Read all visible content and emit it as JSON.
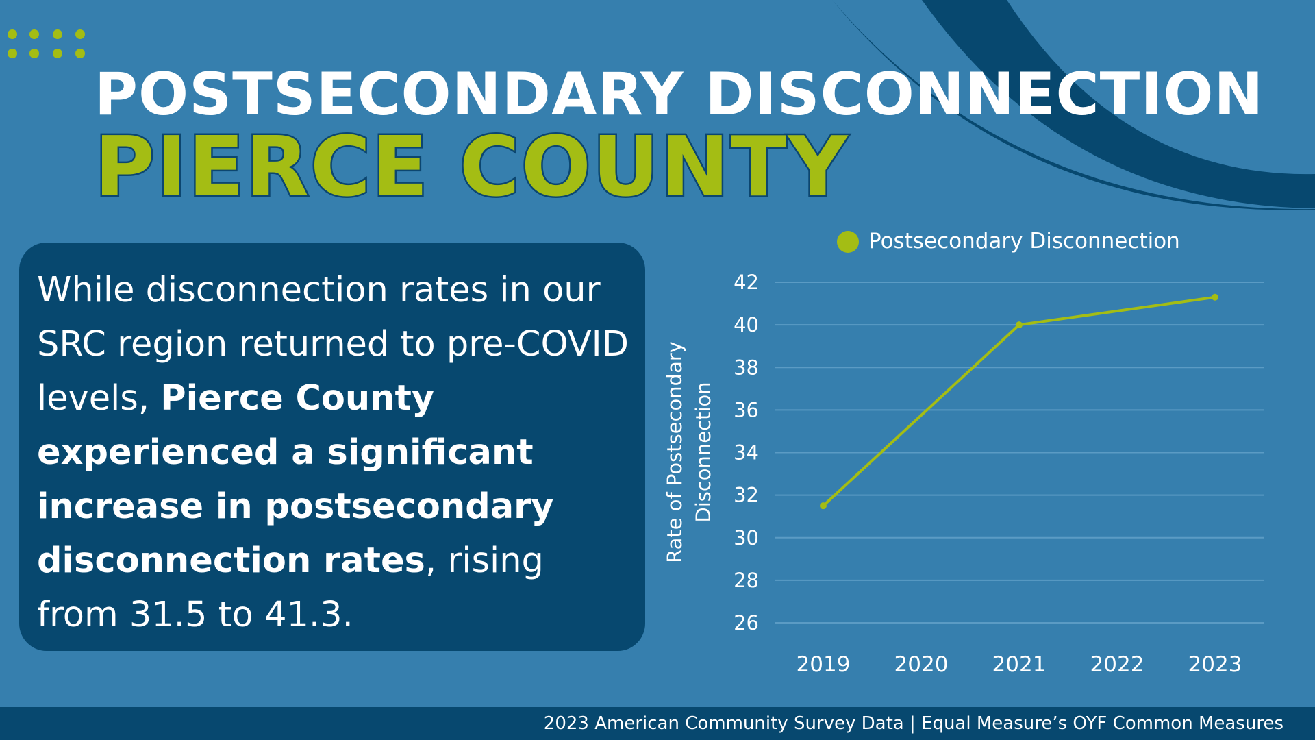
{
  "header": {
    "title": "POSTSECONDARY DISCONNECTION",
    "subtitle": "PIERCE COUNTY"
  },
  "callout": {
    "text_1": "While disconnection rates in our SRC region returned to pre-COVID levels, ",
    "text_bold_1": "Pierce County experienced a significant increase in postsecondary disconnection rates",
    "text_2": ", rising from 31.5 to 41.3."
  },
  "colors": {
    "background": "#367fae",
    "panel": "#07486f",
    "accent": "#a4bd14",
    "gridline": "#5b9bc4"
  },
  "chart_data": {
    "type": "line",
    "categories": [
      "2019",
      "2020",
      "2021",
      "2022",
      "2023"
    ],
    "series": [
      {
        "name": "Postsecondary Disconnection",
        "x": [
          "2019",
          "2021",
          "2023"
        ],
        "values": [
          31.5,
          40.0,
          41.3
        ]
      }
    ],
    "ylabel": "Rate of Postsecondary Disconnection",
    "ylim": [
      26,
      42
    ],
    "yticks": [
      26,
      28,
      30,
      32,
      34,
      36,
      38,
      40,
      42
    ],
    "grid": true,
    "legend": "top"
  },
  "footer": {
    "source": "2023 American Community Survey Data | Equal Measure’s OYF Common Measures"
  }
}
